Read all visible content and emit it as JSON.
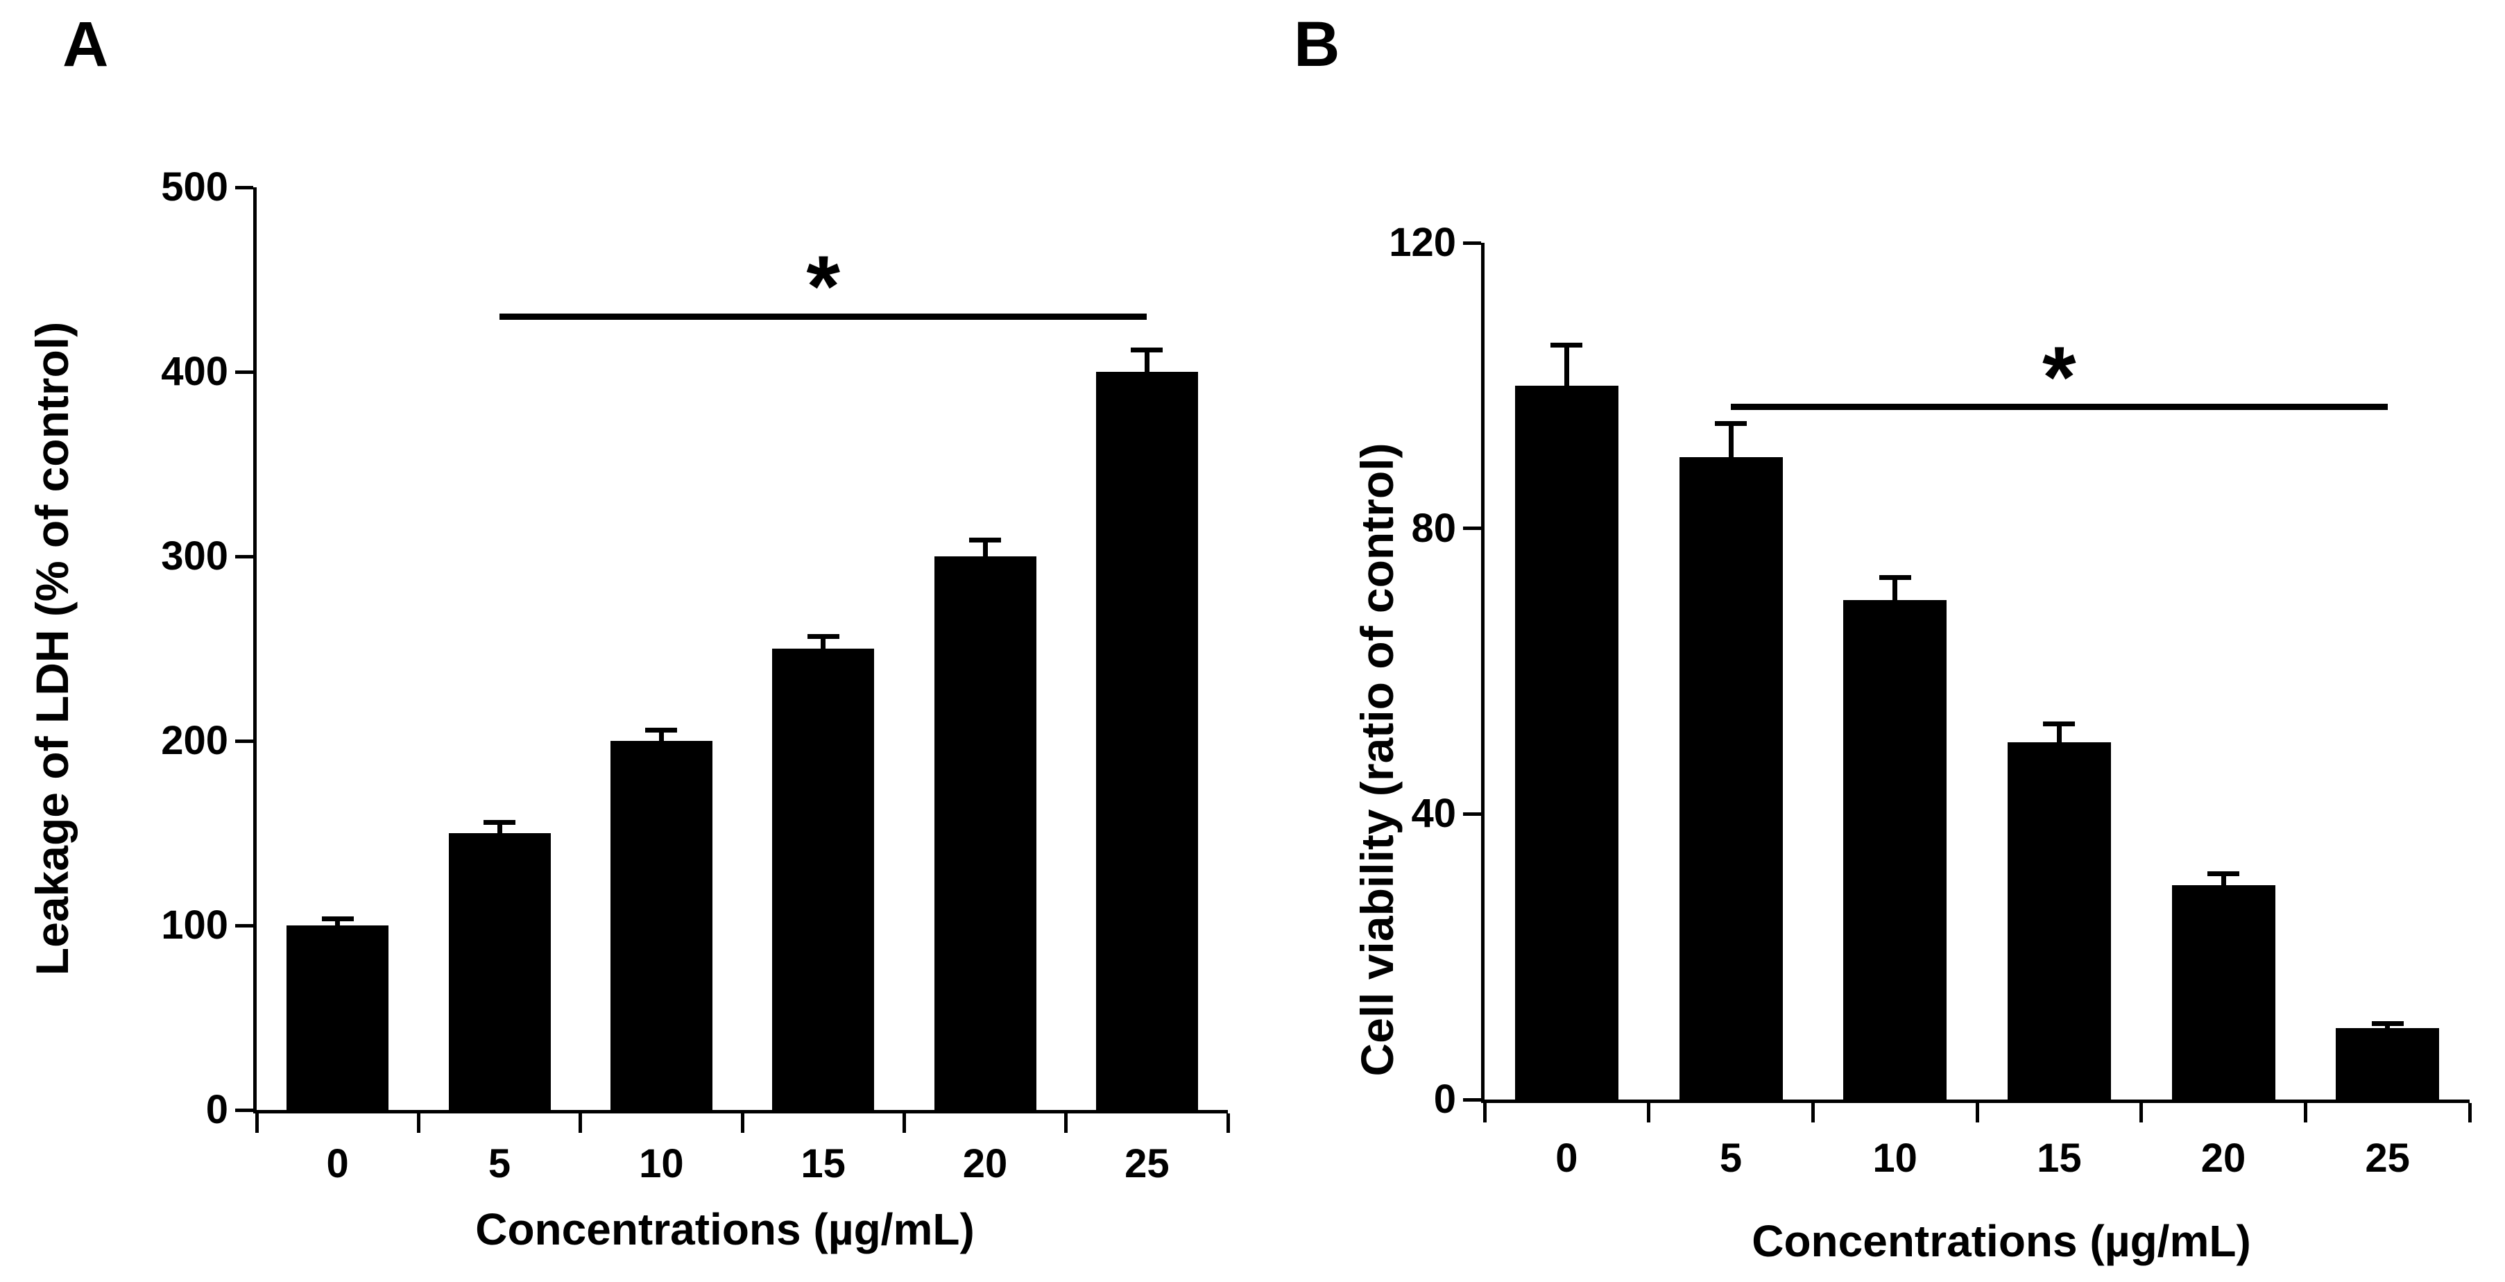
{
  "figure": {
    "background_color": "#ffffff",
    "ink_color": "#000000"
  },
  "chart_data": [
    {
      "panel": "A",
      "type": "bar",
      "title": "",
      "xlabel": "Concentrations (µg/mL)",
      "ylabel": "Leakage of LDH (% of control)",
      "categories": [
        "0",
        "5",
        "10",
        "15",
        "20",
        "25"
      ],
      "values": [
        100,
        150,
        200,
        250,
        300,
        400
      ],
      "errors": [
        5,
        7,
        7,
        8,
        10,
        13
      ],
      "ylim": [
        0,
        500
      ],
      "yticks": [
        0,
        100,
        200,
        300,
        400,
        500
      ],
      "bar_color": "#000000",
      "grid": false,
      "legend": "none",
      "significance": {
        "label": "*",
        "from_category": "5",
        "to_category": "25",
        "y": 430
      }
    },
    {
      "panel": "B",
      "type": "bar",
      "title": "",
      "xlabel": "Concentrations (µg/mL)",
      "ylabel": "Cell viability (ratio of control)",
      "categories": [
        "0",
        "5",
        "10",
        "15",
        "20",
        "25"
      ],
      "values": [
        100,
        90,
        70,
        50,
        30,
        10
      ],
      "errors": [
        6,
        5,
        3.5,
        3,
        2,
        1
      ],
      "ylim": [
        0,
        120
      ],
      "yticks": [
        0,
        40,
        80,
        120
      ],
      "bar_color": "#000000",
      "grid": false,
      "legend": "none",
      "significance": {
        "label": "*",
        "from_category": "5",
        "to_category": "25",
        "y": 97
      }
    }
  ]
}
